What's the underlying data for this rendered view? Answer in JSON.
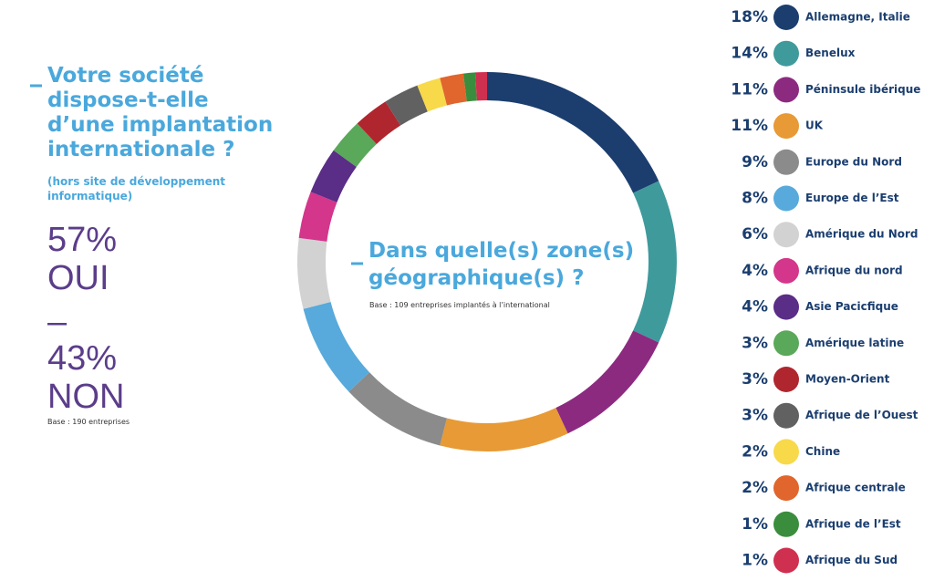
{
  "question": {
    "title_lines": [
      "Votre société",
      "dispose-t-elle",
      "d’une implantation",
      "internationale ?"
    ],
    "note_lines": [
      "(hors site de développement",
      "informatique)"
    ],
    "results": [
      "57%",
      "OUI",
      "–",
      "43%",
      "NON"
    ],
    "base": "Base : 190 entreprises"
  },
  "chart_data": {
    "type": "donut",
    "title_lines": [
      "Dans quelle(s) zone(s)",
      "géographique(s) ?"
    ],
    "subtitle": "Base : 109 entreprises implantés à l’international",
    "categories": [
      "Allemagne, Italie",
      "Benelux",
      "Péninsule ibérique",
      "UK",
      "Europe du Nord",
      "Europe de l’Est",
      "Amérique du Nord",
      "Afrique du nord",
      "Asie Pacicfique",
      "Amérique latine",
      "Moyen-Orient",
      "Afrique de l’Ouest",
      "Chine",
      "Afrique centrale",
      "Afrique de l’Est",
      "Afrique du Sud"
    ],
    "values": [
      18,
      14,
      11,
      11,
      9,
      8,
      6,
      4,
      4,
      3,
      3,
      3,
      2,
      2,
      1,
      1
    ],
    "value_labels": [
      "18%",
      "14%",
      "11%",
      "11%",
      "9%",
      "8%",
      "6%",
      "4%",
      "4%",
      "3%",
      "3%",
      "3%",
      "2%",
      "2%",
      "1%",
      "1%"
    ],
    "colors": [
      "#1b3e6f",
      "#3f9a9c",
      "#8c2a80",
      "#e79a35",
      "#8b8b8b",
      "#57aadb",
      "#d2d2d2",
      "#d3368b",
      "#5a2d86",
      "#5aa85a",
      "#b0262f",
      "#616161",
      "#f7d94a",
      "#e0662d",
      "#3b8d3e",
      "#d0304f"
    ]
  }
}
